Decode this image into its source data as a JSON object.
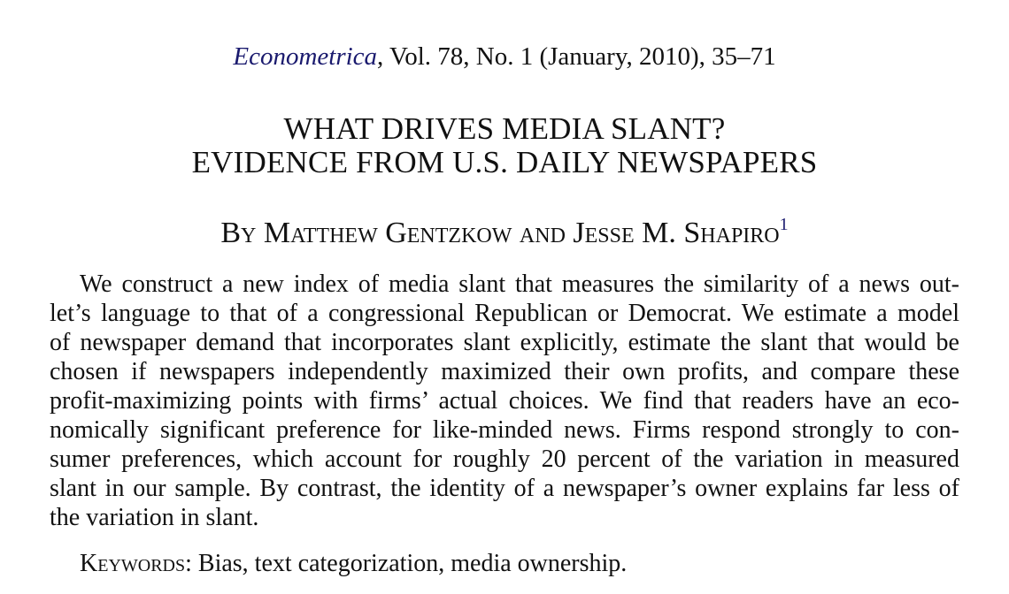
{
  "citation": {
    "journal": "Econometrica",
    "details": ", Vol. 78, No. 1 (January, 2010), 35–71"
  },
  "title": {
    "line1": "WHAT DRIVES MEDIA SLANT?",
    "line2": "EVIDENCE FROM U.S. DAILY NEWSPAPERS"
  },
  "byline": {
    "text": "By Matthew Gentzkow and Jesse M. Shapiro",
    "footnote_mark": "1"
  },
  "abstract": {
    "lines": [
      "We construct a new index of media slant that measures the similarity of a news out-",
      "let’s language to that of a congressional Republican or Democrat. We estimate a model",
      "of newspaper demand that incorporates slant explicitly, estimate the slant that would be",
      "chosen if newspapers independently maximized their own profits, and compare these",
      "profit-maximizing points with firms’ actual choices. We find that readers have an eco-",
      "nomically significant preference for like-minded news. Firms respond strongly to con-",
      "sumer preferences, which account for roughly 20 percent of the variation in measured",
      "slant in our sample. By contrast, the identity of a newspaper’s owner explains far less of",
      "the variation in slant."
    ]
  },
  "keywords": {
    "label": "Keywords",
    "separator": ": ",
    "text": "Bias, text categorization, media ownership."
  },
  "colors": {
    "text": "#111111",
    "link": "#1a1a6e",
    "background": "#ffffff"
  }
}
